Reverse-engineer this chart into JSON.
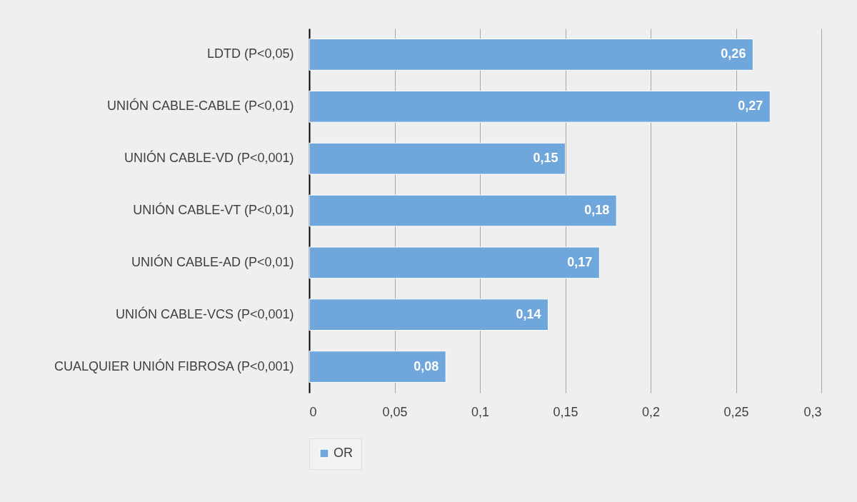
{
  "chart_data": {
    "type": "bar",
    "orientation": "horizontal",
    "categories": [
      "LDTD (P<0,05)",
      "UNIÓN CABLE-CABLE (P<0,01)",
      "UNIÓN CABLE-VD (P<0,001)",
      "UNIÓN CABLE-VT (P<0,01)",
      "UNIÓN CABLE-AD (P<0,01)",
      "UNIÓN CABLE-VCS (P<0,001)",
      "CUALQUIER UNIÓN FIBROSA (P<0,001)"
    ],
    "series": [
      {
        "name": "OR",
        "color": "#6fa6db",
        "values": [
          0.26,
          0.27,
          0.15,
          0.18,
          0.17,
          0.14,
          0.08
        ],
        "value_labels": [
          "0,26",
          "0,27",
          "0,15",
          "0,18",
          "0,17",
          "0,14",
          "0,08"
        ]
      }
    ],
    "xlim": [
      0,
      0.3
    ],
    "xticks": [
      0,
      {
        "value": 0.05,
        "label": "0,05"
      },
      {
        "value": 0.1,
        "label": "0,1"
      },
      {
        "value": 0.15,
        "label": "0,15"
      },
      {
        "value": 0.2,
        "label": "0,2"
      },
      {
        "value": 0.25,
        "label": "0,25"
      },
      {
        "value": 0.3,
        "label": "0,3"
      }
    ],
    "grid": "x",
    "legend": "bottom"
  }
}
